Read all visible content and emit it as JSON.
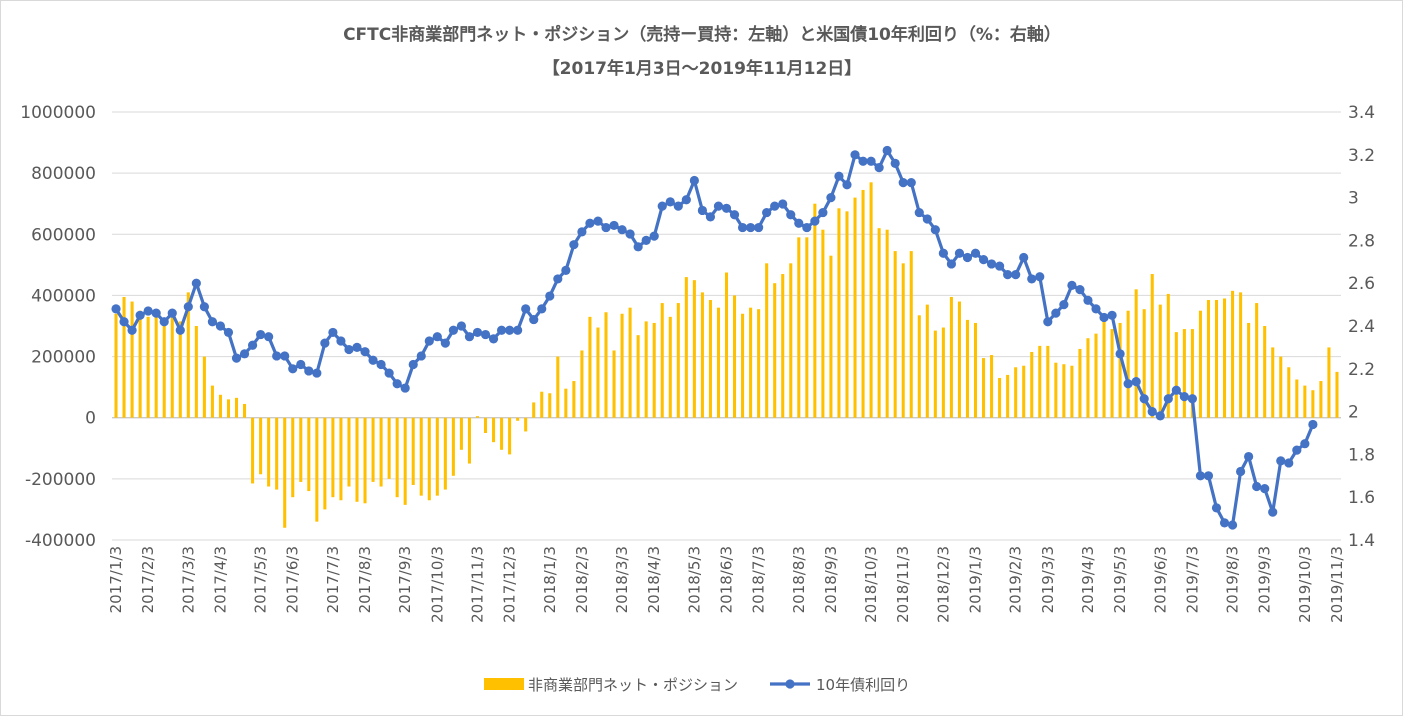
{
  "chart_data": {
    "type": "bar+line",
    "title": "CFTC非商業部門ネット・ポジション（売持ー買持：左軸）と米国債10年利回り（%：右軸）",
    "subtitle": "【2017年1月3日～2019年11月12日】",
    "y_left": {
      "min": -400000,
      "max": 1000000,
      "step": 200000,
      "tick_labels": [
        "-400000",
        "-200000",
        "0",
        "200000",
        "400000",
        "600000",
        "800000",
        "1000000"
      ]
    },
    "y_right": {
      "min": 1.4,
      "max": 3.4,
      "step": 0.2,
      "tick_labels": [
        "1.4",
        "1.6",
        "1.8",
        "2",
        "2.2",
        "2.4",
        "2.6",
        "2.8",
        "3",
        "3.2",
        "3.4"
      ]
    },
    "x_tick_labels": [
      "2017/1/3",
      "2017/2/3",
      "2017/3/3",
      "2017/4/3",
      "2017/5/3",
      "2017/6/3",
      "2017/7/3",
      "2017/8/3",
      "2017/9/3",
      "2017/10/3",
      "2017/11/3",
      "2017/12/3",
      "2018/1/3",
      "2018/2/3",
      "2018/3/3",
      "2018/4/3",
      "2018/5/3",
      "2018/6/3",
      "2018/7/3",
      "2018/8/3",
      "2018/9/3",
      "2018/10/3",
      "2018/11/3",
      "2018/12/3",
      "2019/1/3",
      "2019/2/3",
      "2019/3/3",
      "2019/4/3",
      "2019/5/3",
      "2019/6/3",
      "2019/7/3",
      "2019/8/3",
      "2019/9/3",
      "2019/10/3",
      "2019/11/3"
    ],
    "grid": "horizontal",
    "legend_position": "bottom",
    "series": [
      {
        "name": "非商業部門ネット・ポジション",
        "type": "bar",
        "axis": "left",
        "color": "#FFC000",
        "values": [
          340000,
          395000,
          380000,
          350000,
          330000,
          345000,
          325000,
          335000,
          315000,
          410000,
          300000,
          200000,
          105000,
          75000,
          60000,
          65000,
          45000,
          -215000,
          -185000,
          -225000,
          -235000,
          -360000,
          -260000,
          -210000,
          -240000,
          -340000,
          -300000,
          -260000,
          -270000,
          -225000,
          -275000,
          -280000,
          -210000,
          -225000,
          -200000,
          -260000,
          -285000,
          -220000,
          -255000,
          -270000,
          -255000,
          -235000,
          -190000,
          -105000,
          -150000,
          5000,
          -50000,
          -80000,
          -105000,
          -120000,
          -10000,
          -45000,
          50000,
          85000,
          80000,
          200000,
          95000,
          120000,
          220000,
          330000,
          295000,
          345000,
          220000,
          340000,
          360000,
          270000,
          315000,
          310000,
          375000,
          330000,
          375000,
          460000,
          450000,
          410000,
          385000,
          360000,
          475000,
          400000,
          340000,
          360000,
          355000,
          505000,
          440000,
          470000,
          505000,
          590000,
          590000,
          700000,
          615000,
          530000,
          685000,
          675000,
          720000,
          745000,
          770000,
          620000,
          615000,
          545000,
          505000,
          545000,
          335000,
          370000,
          285000,
          295000,
          395000,
          380000,
          320000,
          310000,
          195000,
          205000,
          130000,
          140000,
          165000,
          170000,
          215000,
          235000,
          235000,
          180000,
          175000,
          170000,
          225000,
          260000,
          275000,
          330000,
          290000,
          310000,
          350000,
          420000,
          355000,
          470000,
          370000,
          405000,
          280000,
          290000,
          290000,
          350000,
          385000,
          385000,
          390000,
          415000,
          410000,
          310000,
          375000,
          300000,
          230000,
          200000,
          165000,
          125000,
          105000,
          90000,
          120000,
          230000,
          150000
        ]
      },
      {
        "name": "10年債利回り",
        "type": "line",
        "axis": "right",
        "color": "#4472C4",
        "values": [
          2.48,
          2.42,
          2.38,
          2.45,
          2.47,
          2.46,
          2.42,
          2.46,
          2.38,
          2.49,
          2.6,
          2.49,
          2.42,
          2.4,
          2.37,
          2.25,
          2.27,
          2.31,
          2.36,
          2.35,
          2.26,
          2.26,
          2.2,
          2.22,
          2.19,
          2.18,
          2.32,
          2.37,
          2.33,
          2.29,
          2.3,
          2.28,
          2.24,
          2.22,
          2.18,
          2.13,
          2.11,
          2.22,
          2.26,
          2.33,
          2.35,
          2.32,
          2.38,
          2.4,
          2.35,
          2.37,
          2.36,
          2.34,
          2.38,
          2.38,
          2.38,
          2.48,
          2.43,
          2.48,
          2.54,
          2.62,
          2.66,
          2.78,
          2.84,
          2.88,
          2.89,
          2.86,
          2.87,
          2.85,
          2.83,
          2.77,
          2.8,
          2.82,
          2.96,
          2.98,
          2.96,
          2.99,
          3.08,
          2.94,
          2.91,
          2.96,
          2.95,
          2.92,
          2.86,
          2.86,
          2.86,
          2.93,
          2.96,
          2.97,
          2.92,
          2.88,
          2.86,
          2.89,
          2.93,
          3.0,
          3.1,
          3.06,
          3.2,
          3.17,
          3.17,
          3.14,
          3.22,
          3.16,
          3.07,
          3.07,
          2.93,
          2.9,
          2.85,
          2.74,
          2.69,
          2.74,
          2.72,
          2.74,
          2.71,
          2.69,
          2.68,
          2.64,
          2.64,
          2.72,
          2.62,
          2.63,
          2.42,
          2.46,
          2.5,
          2.59,
          2.57,
          2.52,
          2.48,
          2.44,
          2.45,
          2.27,
          2.13,
          2.14,
          2.06,
          2.0,
          1.98,
          2.06,
          2.1,
          2.07,
          2.06,
          1.7,
          1.7,
          1.55,
          1.48,
          1.47,
          1.72,
          1.79,
          1.65,
          1.64,
          1.53,
          1.77,
          1.76,
          1.82,
          1.85,
          1.94
        ]
      }
    ]
  }
}
